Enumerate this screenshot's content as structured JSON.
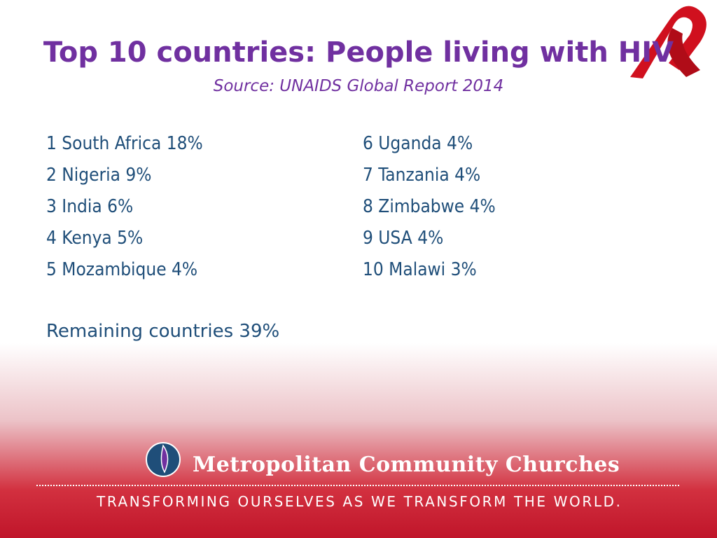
{
  "header": {
    "title": "Top 10 countries: People living with HIV",
    "subtitle": "Source: UNAIDS Global Report 2014"
  },
  "list": {
    "left": [
      "1 South Africa 18%",
      "2 Nigeria 9%",
      "3 India 6%",
      "4 Kenya 5%",
      "5 Mozambique 4%"
    ],
    "right": [
      "6 Uganda 4%",
      "7 Tanzania 4%",
      "8 Zimbabwe 4%",
      "9 USA 4%",
      "10 Malawi 3%"
    ],
    "remaining": "Remaining countries 39%"
  },
  "footer": {
    "organization": "Metropolitan Community Churches",
    "tagline": "TRANSFORMING OURSELVES AS WE TRANSFORM THE WORLD."
  }
}
